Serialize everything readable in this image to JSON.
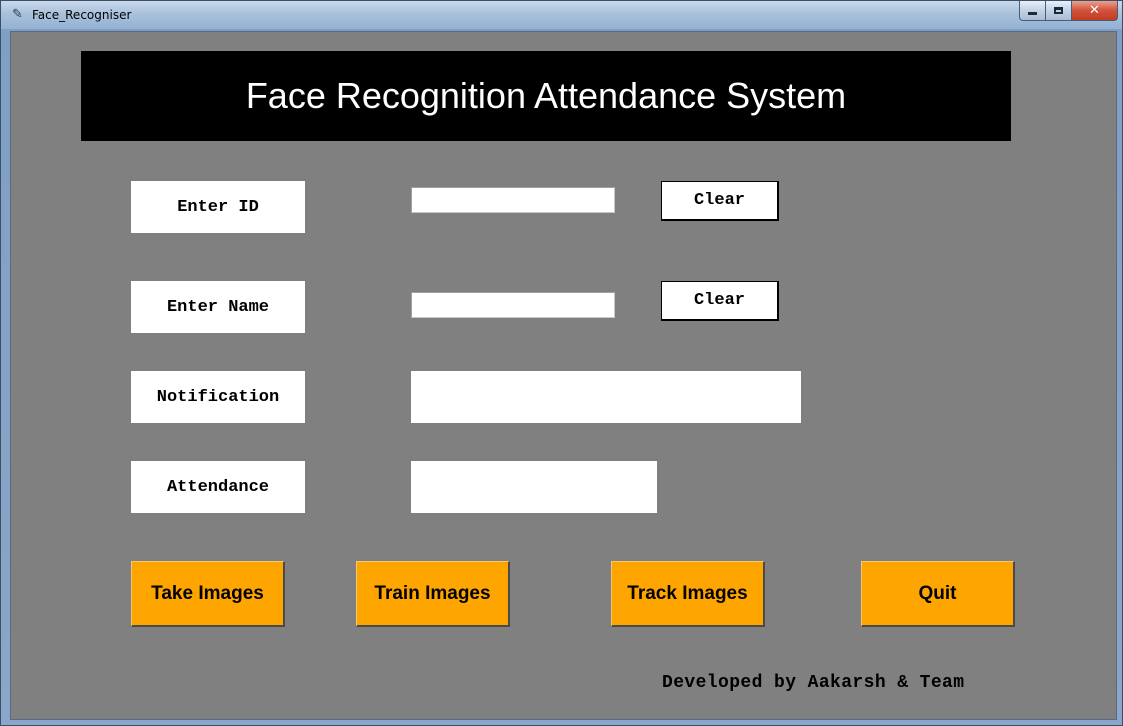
{
  "window": {
    "title": "Face_Recogniser",
    "icon": "feather-icon",
    "controls": {
      "minimize_icon": "minimize-icon",
      "maximize_icon": "maximize-icon",
      "close_icon": "close-icon",
      "close_glyph": "✕"
    }
  },
  "header": {
    "title": "Face Recognition Attendance System"
  },
  "form": {
    "id_label": "Enter ID",
    "id_value": "",
    "id_clear": "Clear",
    "name_label": "Enter Name",
    "name_value": "",
    "name_clear": "Clear",
    "notification_label": "Notification",
    "notification_value": "",
    "attendance_label": "Attendance",
    "attendance_value": ""
  },
  "actions": {
    "take_images": "Take Images",
    "train_images": "Train Images",
    "track_images": "Track Images",
    "quit": "Quit"
  },
  "footer": {
    "credit": "Developed by Aakarsh & Team"
  },
  "colors": {
    "background": "#808080",
    "header_bg": "#000000",
    "header_fg": "#ffffff",
    "action_button": "#ffa500",
    "field_bg": "#ffffff"
  }
}
